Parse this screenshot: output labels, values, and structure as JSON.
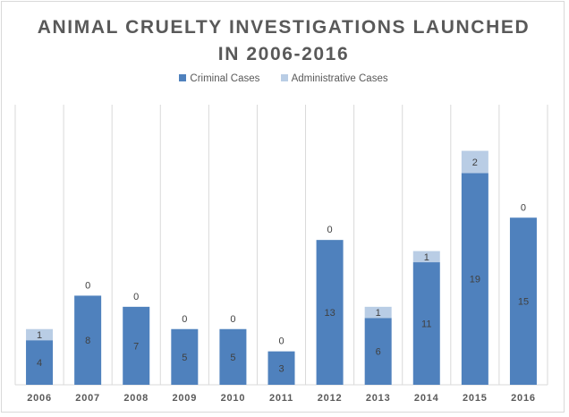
{
  "chart_data": {
    "type": "bar",
    "stacked": true,
    "title_lines": [
      "ANIMAL CRUELTY INVESTIGATIONS LAUNCHED",
      "IN 2006-2016"
    ],
    "categories": [
      "2006",
      "2007",
      "2008",
      "2009",
      "2010",
      "2011",
      "2012",
      "2013",
      "2014",
      "2015",
      "2016"
    ],
    "series": [
      {
        "name": "Criminal Cases",
        "color": "#4f81bd",
        "values": [
          4,
          8,
          7,
          5,
          5,
          3,
          13,
          6,
          11,
          19,
          15
        ]
      },
      {
        "name": "Administrative Cases",
        "color": "#b9cde5",
        "values": [
          1,
          0,
          0,
          0,
          0,
          0,
          0,
          1,
          1,
          2,
          0
        ]
      }
    ],
    "ylim": [
      0,
      22
    ],
    "grid": "vertical-category-separators",
    "legend_position": "top"
  }
}
